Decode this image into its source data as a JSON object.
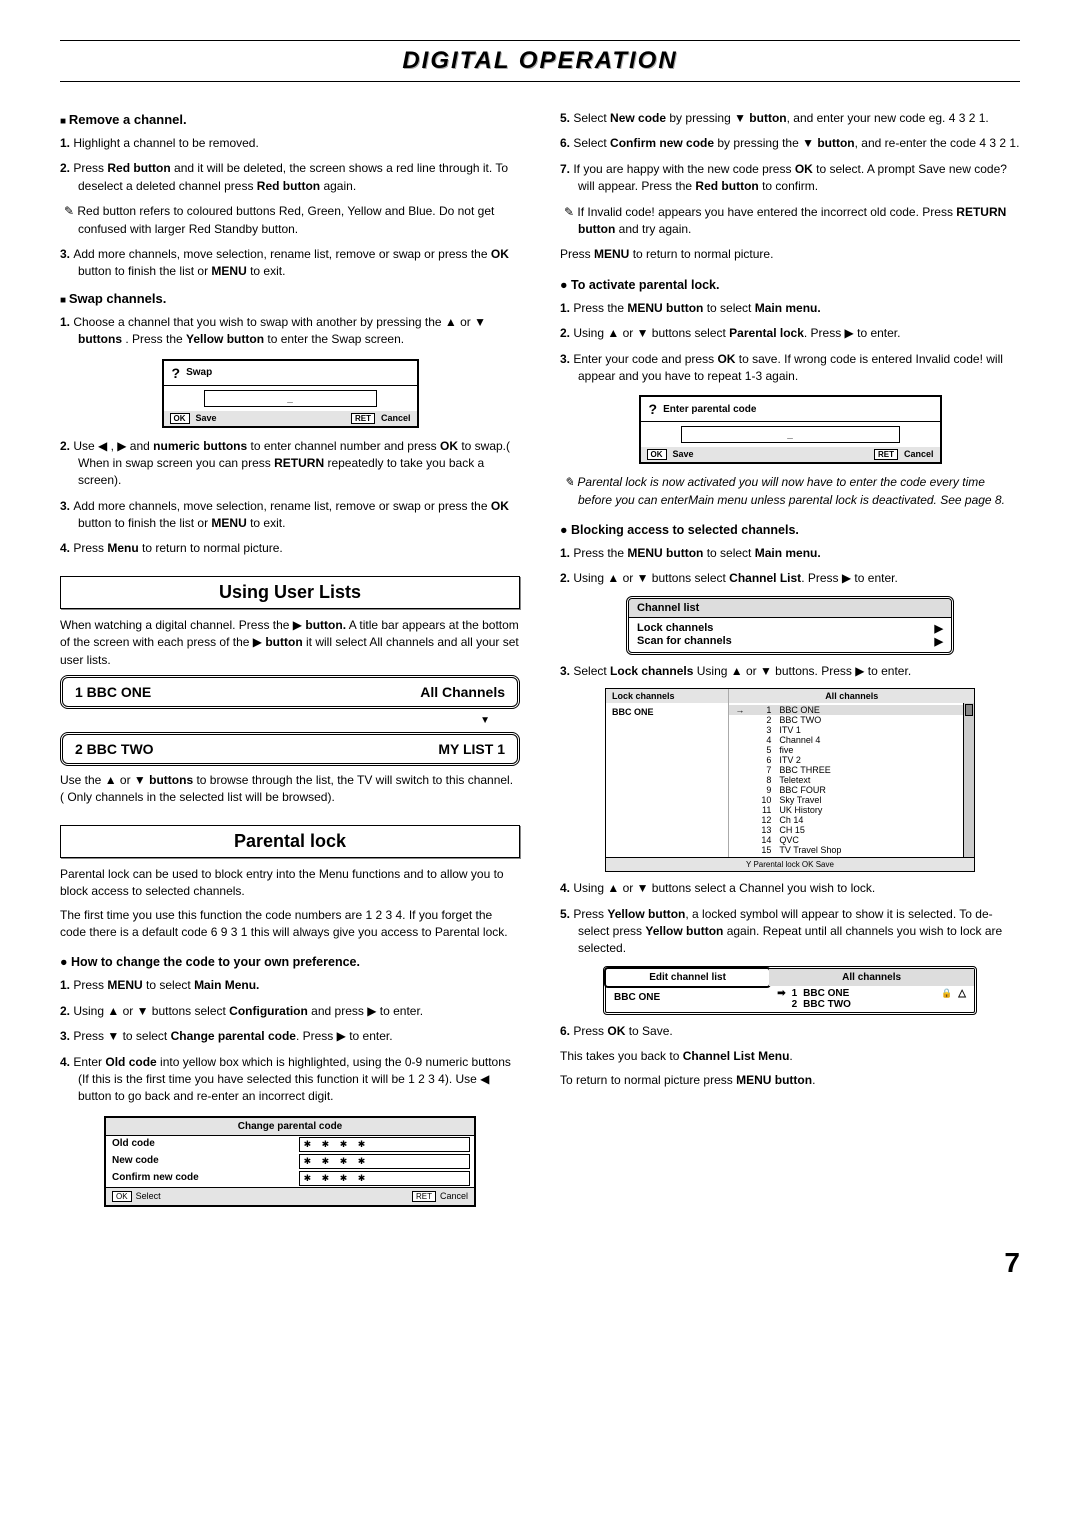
{
  "page_title": "DIGITAL OPERATION",
  "page_number": "7",
  "left": {
    "remove_channel": {
      "heading": "Remove a channel.",
      "step1": "Highlight a channel to be removed.",
      "step2a": "Press ",
      "step2b": "Red button",
      "step2c": " and it will be deleted, the screen shows a red line through it. To deselect a deleted channel press ",
      "step2d": "Red button",
      "step2e": " again.",
      "note": "Red button refers to coloured buttons Red, Green, Yellow and Blue. Do not get confused with larger Red Standby button.",
      "step3a": "Add more channels, move selection, rename list, remove or swap or press the ",
      "step3b": "OK",
      "step3c": " button to finish the list or ",
      "step3d": "MENU",
      "step3e": " to exit."
    },
    "swap_channels": {
      "heading": "Swap channels.",
      "step1a": "Choose a channel that you wish to swap with another by pressing the ▲ or ▼ ",
      "step1b": "buttons ",
      "step1c": ". Press the ",
      "step1d": "Yellow button",
      "step1e": " to enter the Swap screen.",
      "box": {
        "qmark": "?",
        "title": "Swap",
        "input": "_",
        "ok": "OK",
        "save": "Save",
        "ret": "RET",
        "cancel": "Cancel"
      },
      "step2a": "Use ◀ , ▶ and ",
      "step2b": "numeric buttons",
      "step2c": " to enter channel number and press ",
      "step2d": "OK",
      "step2e": " to swap.( When in swap screen you can press ",
      "step2f": "RETURN",
      "step2g": " repeatedly to take you back a screen).",
      "step3a": "Add more channels, move selection, rename list, remove or swap or press the ",
      "step3b": "OK",
      "step3c": " button to finish the list or ",
      "step3d": "MENU",
      "step3e": " to exit.",
      "step4a": "Press ",
      "step4b": "Menu",
      "step4c": " to return to normal picture."
    },
    "user_lists": {
      "heading": "Using User Lists",
      "intro_a": "When watching a digital channel. Press the ▶ ",
      "intro_b": "button.",
      "intro_c": " A title bar appears at the bottom of the screen with each press of the ▶ ",
      "intro_d": "button",
      "intro_e": " it will select All channels and all your set user lists.",
      "box1_left": "1  BBC ONE",
      "box1_right": "All Channels",
      "box2_left": "2  BBC TWO",
      "box2_right": "MY LIST 1",
      "after_a": "Use the ▲ or ▼ ",
      "after_b": "buttons",
      "after_c": " to browse through the list, the TV will switch to this channel. ( Only channels in the selected list will be browsed)."
    },
    "parental": {
      "heading": "Parental lock",
      "p1": "Parental lock can be used to block entry into the Menu functions and to allow you to block access to selected channels.",
      "p2": "The first time you use this function the code numbers are 1 2 3 4. If you forget the code there is a default code 6 9 3 1 this will always give you access to Parental lock.",
      "sub": "How to change the code to your own preference.",
      "s1a": "Press ",
      "s1b": "MENU",
      "s1c": " to select ",
      "s1d": "Main Menu.",
      "s2a": "Using ▲ or ▼ buttons select ",
      "s2b": "Configuration",
      "s2c": " and press ▶ to enter.",
      "s3a": "Press  ▼ to select ",
      "s3b": "Change parental code",
      "s3c": ". Press ▶ to enter.",
      "s4a": "Enter ",
      "s4b": "Old code",
      "s4c": " into yellow box which is highlighted, using the 0-9 numeric buttons (If this is the first time you have selected this function it will be 1 2 3 4). Use ◀ button to go back and re-enter an incorrect digit.",
      "code_table": {
        "hdr": "Change parental code",
        "r1": "Old code",
        "r2": "New code",
        "r3": "Confirm new code",
        "stars": "✱ ✱ ✱ ✱",
        "ok": "OK",
        "select": "Select",
        "ret": "RET",
        "cancel": "Cancel"
      }
    }
  },
  "right": {
    "s5a": "Select ",
    "s5b": "New code",
    "s5c": " by pressing ▼ ",
    "s5d": "button",
    "s5e": ", and enter your new code eg. 4 3 2 1.",
    "s6a": "Select ",
    "s6b": "Confirm new code",
    "s6c": " by pressing the ▼ ",
    "s6d": "button",
    "s6e": ", and re-enter the code 4 3 2 1.",
    "s7a": "If you are happy with the new code press ",
    "s7b": "OK",
    "s7c": " to select. A prompt Save new code? will appear. Press the ",
    "s7d": "Red button",
    "s7e": " to confirm.",
    "note_a": "If Invalid code! appears you have entered the incorrect old code. Press ",
    "note_b": "RETURN button",
    "note_c": " and try again.",
    "press_menu_a": "Press ",
    "press_menu_b": "MENU",
    "press_menu_c": " to return to normal picture.",
    "activate": {
      "heading": "To activate parental lock.",
      "s1a": "Press the ",
      "s1b": "MENU button",
      "s1c": " to select ",
      "s1d": "Main menu.",
      "s2a": "Using ▲ or ▼ buttons select ",
      "s2b": "Parental lock",
      "s2c": ". Press  ▶  to enter.",
      "s3a": "Enter your code and press ",
      "s3b": "OK",
      "s3c": " to save. If wrong code is entered Invalid code! will appear and you have to repeat 1-3 again.",
      "box": {
        "qmark": "?",
        "title": "Enter parental code",
        "input": "_",
        "ok": "OK",
        "save": "Save",
        "ret": "RET",
        "cancel": "Cancel"
      },
      "note": "Parental lock is now activated you will now have to enter the code every time before you can enterMain menu unless parental lock is deactivated. See page 8."
    },
    "blocking": {
      "heading": "Blocking access to selected channels.",
      "s1a": "Press the ",
      "s1b": "MENU button",
      "s1c": " to select ",
      "s1d": "Main menu.",
      "s2a": "Using ▲ or ▼ buttons select ",
      "s2b": "Channel List",
      "s2c": ". Press  ▶  to enter.",
      "menu": {
        "hdr": "Channel list",
        "r1": "Lock channels",
        "r2": "Scan for channels"
      },
      "s3a": "Select ",
      "s3b": "Lock channels",
      "s3c": " Using ▲ or ▼ buttons. Press  ▶  to enter.",
      "lock_box": {
        "hdr_left": "Lock channels",
        "hdr_right": "All channels",
        "left_sel": "BBC ONE",
        "channels": [
          {
            "n": "1",
            "name": "BBC ONE"
          },
          {
            "n": "2",
            "name": "BBC TWO"
          },
          {
            "n": "3",
            "name": "ITV 1"
          },
          {
            "n": "4",
            "name": "Channel 4"
          },
          {
            "n": "5",
            "name": "five"
          },
          {
            "n": "6",
            "name": "ITV 2"
          },
          {
            "n": "7",
            "name": "BBC THREE"
          },
          {
            "n": "8",
            "name": "Teletext"
          },
          {
            "n": "9",
            "name": "BBC FOUR"
          },
          {
            "n": "10",
            "name": "Sky Travel"
          },
          {
            "n": "11",
            "name": "UK History"
          },
          {
            "n": "12",
            "name": "Ch 14"
          },
          {
            "n": "13",
            "name": "CH 15"
          },
          {
            "n": "14",
            "name": "QVC"
          },
          {
            "n": "15",
            "name": "TV Travel Shop"
          }
        ],
        "ftr": "Y   Parental lock   OK  Save"
      },
      "s4": "Using ▲ or ▼ buttons select a Channel you wish to lock.",
      "s5a": "Press ",
      "s5b": "Yellow button",
      "s5c": ", a locked symbol will appear  to show it is selected. To  de-select press ",
      "s5d": "Yellow button",
      "s5e": " again. Repeat until all channels you wish to lock are selected.",
      "edit": {
        "hdr_left": "Edit channel list",
        "hdr_right": "All channels",
        "left_sel": "BBC ONE",
        "r1n": "1",
        "r1": "BBC ONE",
        "r2n": "2",
        "r2": "BBC TWO"
      },
      "s6a": "Press ",
      "s6b": "OK",
      "s6c": " to Save.",
      "after_a": "This takes you back to ",
      "after_b": "Channel List Menu",
      "after_c": ".",
      "after2_a": "To return to normal picture press ",
      "after2_b": "MENU button",
      "after2_c": "."
    }
  }
}
